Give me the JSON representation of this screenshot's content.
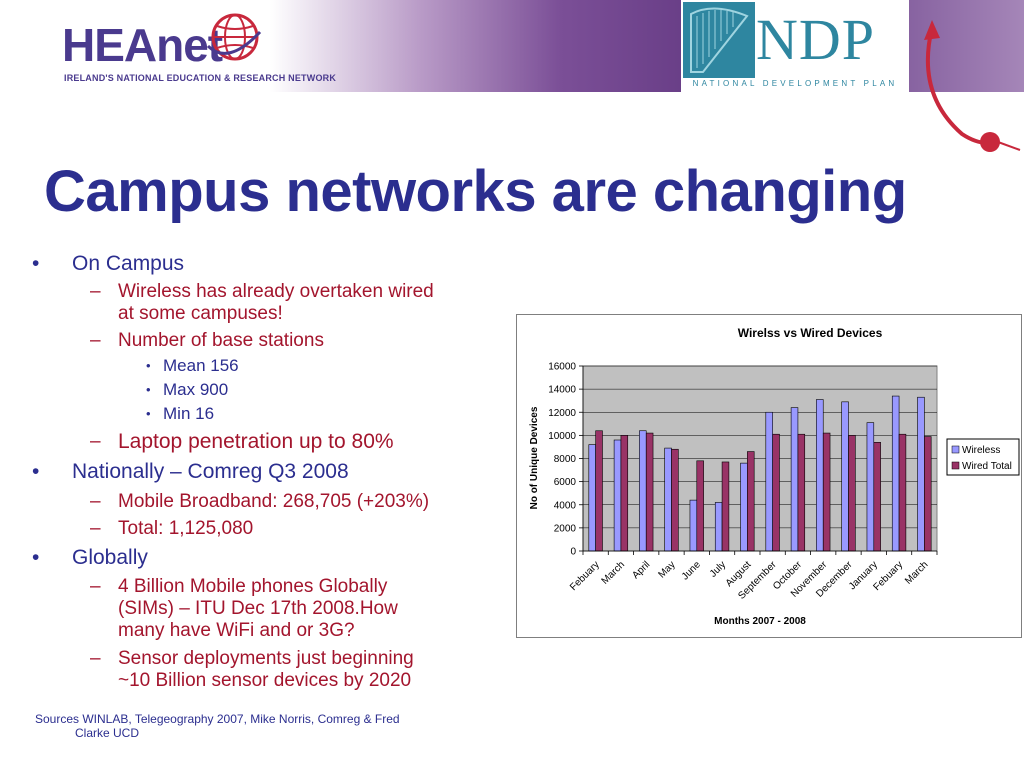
{
  "header": {
    "org_name": "HEAnet",
    "org_tagline": "IRELAND'S NATIONAL EDUCATION & RESEARCH NETWORK",
    "partner_name": "NDP",
    "partner_tagline": "NATIONAL DEVELOPMENT PLAN"
  },
  "slide": {
    "title": "Campus networks are changing",
    "bullets": {
      "on_campus": "On Campus",
      "wireless_overtaken_1": "Wireless has already overtaken wired",
      "wireless_overtaken_2": "at some campuses!",
      "base_stations": "Number of base stations",
      "mean": "Mean 156",
      "max": "Max  900",
      "min": "Min 16",
      "laptop": "Laptop penetration up to 80%",
      "nationally": "Nationally – Comreg Q3 2008",
      "mobile_broadband": "Mobile Broadband: 268,705 (+203%)",
      "total": "Total: 1,125,080",
      "globally": "Globally",
      "billion_1": "4 Billion Mobile phones Globally",
      "billion_2": "(SIMs) – ITU Dec 17th 2008.How",
      "billion_3": "many have WiFi and or 3G?",
      "sensor_1": "Sensor deployments just beginning",
      "sensor_2": "~10 Billion sensor devices by 2020"
    },
    "markers": {
      "bullet": "•",
      "dash": "–"
    },
    "sources_1": "Sources WINLAB, Telegeography 2007, Mike Norris, Comreg  & Fred",
    "sources_2": "Clarke UCD"
  },
  "colors": {
    "title": "#2b2e8f",
    "sub_bullet": "#a3152d",
    "wireless": "#9999ff",
    "wired": "#993366",
    "plot_bg": "#c0c0c0"
  },
  "chart_data": {
    "type": "bar",
    "title": "Wirelss vs Wired Devices",
    "xlabel": "Months 2007 - 2008",
    "ylabel": "No of Unique Devices",
    "categories": [
      "Febuary",
      "March",
      "April",
      "May",
      "June",
      "July",
      "August",
      "September",
      "October",
      "November",
      "December",
      "January",
      "Febuary",
      "March"
    ],
    "series": [
      {
        "name": "Wireless",
        "color": "#9999ff",
        "values": [
          9200,
          9600,
          10400,
          8900,
          4400,
          4200,
          7600,
          12000,
          12400,
          13100,
          12900,
          11100,
          13400,
          13300
        ]
      },
      {
        "name": "Wired Total",
        "color": "#993366",
        "values": [
          10400,
          10000,
          10200,
          8800,
          7800,
          7700,
          8600,
          10100,
          10100,
          10200,
          10000,
          9400,
          10100,
          9900
        ]
      }
    ],
    "ylim": [
      0,
      16000
    ],
    "yticks": [
      0,
      2000,
      4000,
      6000,
      8000,
      10000,
      12000,
      14000,
      16000
    ],
    "grid": true,
    "legend": "right"
  }
}
